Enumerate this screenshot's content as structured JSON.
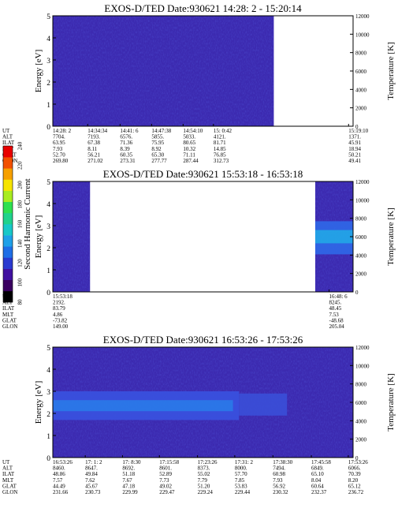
{
  "colors": {
    "background": "#3c2ab0",
    "blank": "#ffffff",
    "colorbar_stops": [
      "#000000",
      "#3a0060",
      "#4010a0",
      "#2a3ad0",
      "#1f6ee6",
      "#1fa0e8",
      "#18c8c8",
      "#20d28c",
      "#2ee050",
      "#a8ec20",
      "#f6e400",
      "#f6a000",
      "#f25000",
      "#e80000"
    ]
  },
  "colorbar": {
    "label": "Second Harmonic Current",
    "ticks": [
      "80",
      "100",
      "120",
      "140",
      "160",
      "180",
      "200",
      "220",
      "240"
    ]
  },
  "chart_data": [
    {
      "type": "heatmap",
      "title": "EXOS-D/TED   Date:930621   14:28: 2 - 15:20:14",
      "ylabel": "Energy [eV]",
      "y2label": "Temperature [K]",
      "ylim": [
        0,
        5
      ],
      "yticks": [
        "0",
        "1",
        "2",
        "3",
        "4",
        "5"
      ],
      "y2lim": [
        0,
        12000
      ],
      "y2ticks": [
        "0",
        "2000",
        "4000",
        "6000",
        "8000",
        "10000",
        "12000"
      ],
      "xlim": [
        0,
        100
      ],
      "data_spans": [
        [
          0,
          73.6
        ]
      ],
      "bands": [],
      "orbit_labels": [
        "UT",
        "ALT",
        "ILAT",
        "MLT",
        "GLAT",
        "GLON"
      ],
      "orbit_columns": [
        {
          "x": 0,
          "values": [
            "14:28: 2",
            "7704.",
            "63.95",
            "7.93",
            "52.70",
            "269.80"
          ]
        },
        {
          "x": 11.6,
          "values": [
            "14:34:34",
            "7193.",
            "67.38",
            "8.11",
            "56.21",
            "271.02"
          ]
        },
        {
          "x": 22.4,
          "values": [
            "14:41: 6",
            "6576.",
            "71.36",
            "8.39",
            "60.35",
            "273.31"
          ]
        },
        {
          "x": 32.9,
          "values": [
            "14:47:38",
            "5855.",
            "75.95",
            "8.92",
            "65.30",
            "277.77"
          ]
        },
        {
          "x": 43.4,
          "values": [
            "14:54:10",
            "5033.",
            "80.65",
            "10.32",
            "71.11",
            "287.44"
          ]
        },
        {
          "x": 53.5,
          "values": [
            "15: 0:42",
            "4121.",
            "81.71",
            "14.85",
            "76.85",
            "312.73"
          ]
        },
        {
          "x": 98.5,
          "values": [
            "15:19:10",
            "1371.",
            "45.91",
            "18.94",
            "50.21",
            "49.41"
          ]
        }
      ]
    },
    {
      "type": "heatmap",
      "title": "EXOS-D/TED   Date:930621   15:53:18 - 16:53:18",
      "ylabel": "Energy [eV]",
      "y2label": "Temperature [K]",
      "ylim": [
        0,
        5
      ],
      "yticks": [
        "0",
        "1",
        "2",
        "3",
        "4",
        "5"
      ],
      "y2lim": [
        0,
        12000
      ],
      "y2ticks": [
        "0",
        "2000",
        "4000",
        "6000",
        "8000",
        "10000",
        "12000"
      ],
      "xlim": [
        0,
        100
      ],
      "data_spans": [
        [
          0,
          12.4
        ],
        [
          87.4,
          100
        ]
      ],
      "bands": [
        {
          "x0": 87.4,
          "x1": 100,
          "e0": 1.7,
          "e1": 3.2,
          "color": "#2f68e8"
        },
        {
          "x0": 87.4,
          "x1": 100,
          "e0": 2.2,
          "e1": 2.8,
          "color": "#22a6e6"
        }
      ],
      "orbit_labels": [
        "UT",
        "ALT",
        "ILAT",
        "MLT",
        "GLAT",
        "GLON"
      ],
      "orbit_columns": [
        {
          "x": 0,
          "values": [
            "15:53:18",
            "2192.",
            "83.79",
            "4.86",
            "-73.82",
            "149.00"
          ]
        },
        {
          "x": 92,
          "values": [
            "16:48: 6",
            "8245.",
            "48.45",
            "7.53",
            "-48.68",
            "205.04"
          ]
        }
      ]
    },
    {
      "type": "heatmap",
      "title": "EXOS-D/TED   Date:930621   16:53:26 - 17:53:26",
      "ylabel": "Energy [eV]",
      "y2label": "Temperature [K]",
      "ylim": [
        0,
        5
      ],
      "yticks": [
        "0",
        "1",
        "2",
        "3",
        "4",
        "5"
      ],
      "y2lim": [
        0,
        12000
      ],
      "y2ticks": [
        "0",
        "2000",
        "4000",
        "6000",
        "8000",
        "10000",
        "12000"
      ],
      "xlim": [
        0,
        100
      ],
      "data_spans": [
        [
          0,
          100
        ]
      ],
      "bands": [
        {
          "x0": 0,
          "x1": 62,
          "e0": 1.7,
          "e1": 3.0,
          "color": "#3852e0"
        },
        {
          "x0": 0,
          "x1": 60,
          "e0": 2.1,
          "e1": 2.6,
          "color": "#2a7ae8"
        },
        {
          "x0": 62,
          "x1": 78,
          "e0": 1.9,
          "e1": 2.9,
          "color": "#3a4fd8"
        }
      ],
      "orbit_labels": [
        "UT",
        "ALT",
        "ILAT",
        "MLT",
        "GLAT",
        "GLON"
      ],
      "orbit_columns": [
        {
          "x": 0,
          "values": [
            "16:53:26",
            "8460.",
            "48.86",
            "7.57",
            "44.49",
            "231.66"
          ]
        },
        {
          "x": 10.8,
          "values": [
            "17: 1: 2",
            "8647.",
            "49.84",
            "7.62",
            "45.67",
            "230.73"
          ]
        },
        {
          "x": 23.2,
          "values": [
            "17: 8:30",
            "8692.",
            "51.18",
            "7.67",
            "47.18",
            "229.99"
          ]
        },
        {
          "x": 35.5,
          "values": [
            "17:15:58",
            "8601.",
            "52.89",
            "7.73",
            "49.02",
            "229.47"
          ]
        },
        {
          "x": 48.2,
          "values": [
            "17:23:26",
            "8373.",
            "55.02",
            "7.79",
            "51.20",
            "229.24"
          ]
        },
        {
          "x": 60.6,
          "values": [
            "17:31: 2",
            "8000.",
            "57.70",
            "7.85",
            "53.83",
            "229.44"
          ]
        },
        {
          "x": 73.3,
          "values": [
            "17:38:30",
            "7494.",
            "60.98",
            "7.93",
            "56.92",
            "230.32"
          ]
        },
        {
          "x": 86.1,
          "values": [
            "17:45:58",
            "6849.",
            "65.10",
            "8.04",
            "60.64",
            "232.37"
          ]
        },
        {
          "x": 98.4,
          "values": [
            "17:53:26",
            "6066.",
            "70.39",
            "8.20",
            "65.12",
            "236.72"
          ]
        }
      ]
    }
  ]
}
